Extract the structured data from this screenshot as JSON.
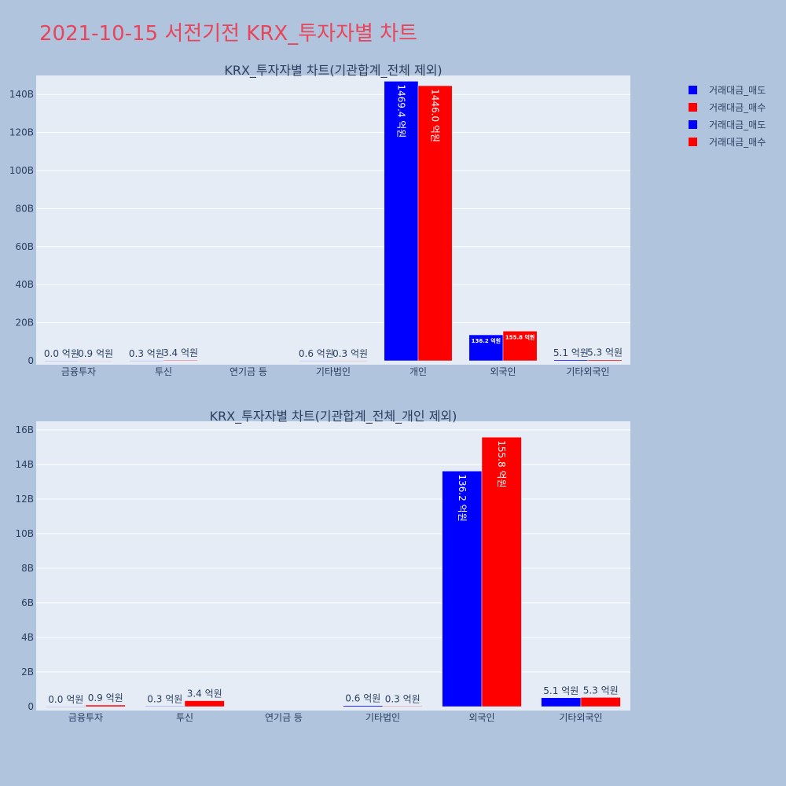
{
  "title": "2021-10-15 서전기전 KRX_투자자별 차트",
  "legend": {
    "placement": "top-right",
    "entries": [
      {
        "label": "거래대금_매도",
        "color": "#0000ff"
      },
      {
        "label": "거래대금_매수",
        "color": "#ff0000"
      },
      {
        "label": "거래대금_매도",
        "color": "#0000ff"
      },
      {
        "label": "거래대금_매수",
        "color": "#ff0000"
      }
    ]
  },
  "colors": {
    "sell": "#0000ff",
    "buy": "#ff0000",
    "plot_bg": "#e5ecf6",
    "page_bg": "#b0c4de"
  },
  "chart_data": [
    {
      "type": "bar",
      "title": "KRX_투자자별 차트(기관합계_전체 제외)",
      "categories": [
        "금융투자",
        "투신",
        "연기금 등",
        "기타법인",
        "개인",
        "외국인",
        "기타외국인"
      ],
      "ylim": [
        0,
        150
      ],
      "yticks": [
        0,
        20,
        40,
        60,
        80,
        100,
        120,
        140
      ],
      "ytick_labels": [
        "0",
        "20B",
        "40B",
        "60B",
        "80B",
        "100B",
        "120B",
        "140B"
      ],
      "grid": true,
      "series": [
        {
          "name": "거래대금_매도",
          "color": "#0000ff",
          "values": [
            0.0,
            0.03,
            null,
            0.06,
            146.94,
            13.62,
            0.51
          ],
          "labels": [
            "0.0 억원",
            "0.3 억원",
            "",
            "0.6 억원",
            "1469.4 억원",
            "136.2 억원",
            "5.1 억원"
          ]
        },
        {
          "name": "거래대금_매수",
          "color": "#ff0000",
          "values": [
            0.09,
            0.34,
            null,
            0.03,
            144.6,
            15.58,
            0.53
          ],
          "labels": [
            "0.9 억원",
            "3.4 억원",
            "",
            "0.3 억원",
            "1446.0 억원",
            "155.8 억원",
            "5.3 억원"
          ]
        }
      ]
    },
    {
      "type": "bar",
      "title": "KRX_투자자별 차트(기관합계_전체_개인 제외)",
      "categories": [
        "금융투자",
        "투신",
        "연기금 등",
        "기타법인",
        "외국인",
        "기타외국인"
      ],
      "ylim": [
        0,
        16.5
      ],
      "yticks": [
        0,
        2,
        4,
        6,
        8,
        10,
        12,
        14,
        16
      ],
      "ytick_labels": [
        "0",
        "2B",
        "4B",
        "6B",
        "8B",
        "10B",
        "12B",
        "14B",
        "16B"
      ],
      "grid": true,
      "series": [
        {
          "name": "거래대금_매도",
          "color": "#0000ff",
          "values": [
            0.0,
            0.03,
            null,
            0.06,
            13.62,
            0.51
          ],
          "labels": [
            "0.0 억원",
            "0.3 억원",
            "",
            "0.6 억원",
            "136.2 억원",
            "5.1 억원"
          ]
        },
        {
          "name": "거래대금_매수",
          "color": "#ff0000",
          "values": [
            0.09,
            0.34,
            null,
            0.03,
            15.58,
            0.53
          ],
          "labels": [
            "0.9 억원",
            "3.4 억원",
            "",
            "0.3 억원",
            "155.8 억원",
            "5.3 억원"
          ]
        }
      ]
    }
  ]
}
